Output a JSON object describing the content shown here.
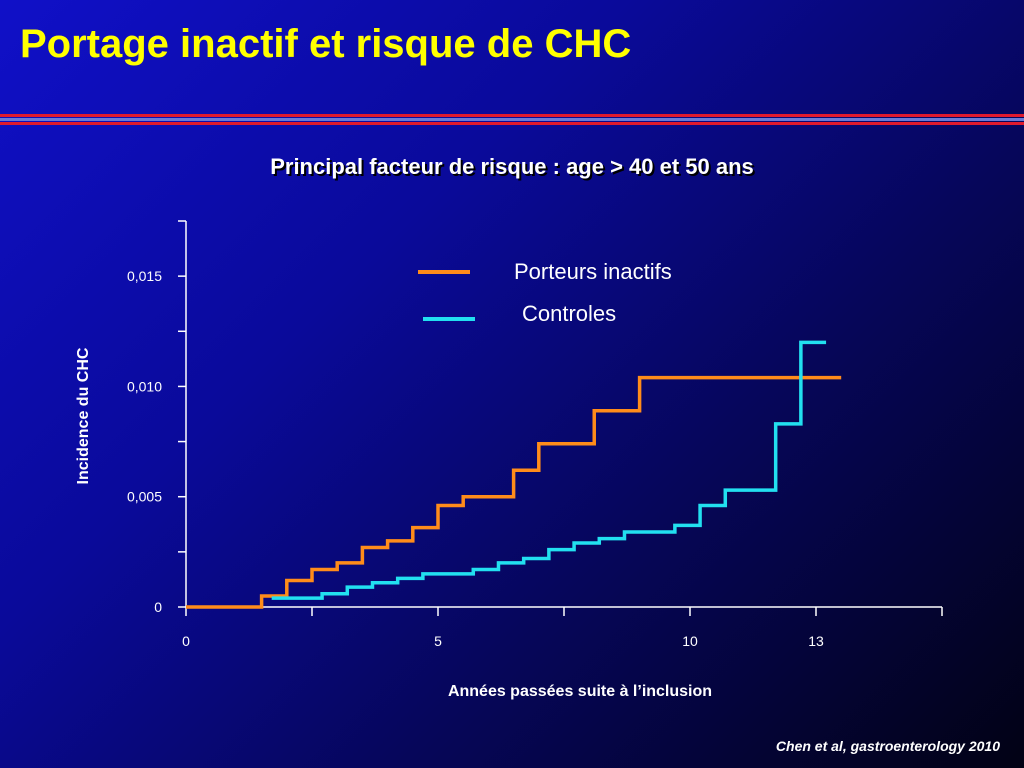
{
  "slide": {
    "title": "Portage inactif et risque de CHC",
    "subtitle": "Principal facteur de risque : age > 40 et 50 ans",
    "citation": "Chen et al, gastroenterology 2010",
    "colors": {
      "title": "#ffff00",
      "rule_red": "#e01a2e",
      "rule_blue": "#6a7ad8"
    }
  },
  "chart_data": {
    "type": "line",
    "step": true,
    "xlabel": "Années passées suite à l’inclusion",
    "ylabel": "Incidence du CHC",
    "xlim": [
      0,
      15
    ],
    "ylim": [
      0,
      0.0175
    ],
    "x_ticks": [
      {
        "value": 0,
        "label": "0"
      },
      {
        "value": 2.5,
        "label": ""
      },
      {
        "value": 5,
        "label": "5"
      },
      {
        "value": 7.5,
        "label": ""
      },
      {
        "value": 10,
        "label": "10"
      },
      {
        "value": 12.5,
        "label": "13"
      },
      {
        "value": 15,
        "label": ""
      }
    ],
    "y_ticks": [
      {
        "value": 0,
        "label": "0"
      },
      {
        "value": 0.0025,
        "label": ""
      },
      {
        "value": 0.005,
        "label": "0,005"
      },
      {
        "value": 0.0075,
        "label": ""
      },
      {
        "value": 0.01,
        "label": "0,010"
      },
      {
        "value": 0.0125,
        "label": ""
      },
      {
        "value": 0.015,
        "label": "0,015"
      },
      {
        "value": 0.0175,
        "label": ""
      }
    ],
    "legend_position": "top-center",
    "series": [
      {
        "name": "Porteurs inactifs",
        "color": "#ff8c1a",
        "x": [
          0,
          1.5,
          2.0,
          2.5,
          3.0,
          3.5,
          4.0,
          4.5,
          5.0,
          5.5,
          6.5,
          7.0,
          8.1,
          9.0,
          13.0
        ],
        "y": [
          0,
          0.0005,
          0.0012,
          0.0017,
          0.002,
          0.0027,
          0.003,
          0.0036,
          0.0046,
          0.005,
          0.0062,
          0.0074,
          0.0089,
          0.0104,
          0.0104
        ]
      },
      {
        "name": "Controles",
        "color": "#22e0f0",
        "x": [
          1.7,
          2.7,
          3.2,
          3.7,
          4.2,
          4.7,
          5.7,
          6.2,
          6.7,
          7.2,
          7.7,
          8.2,
          8.7,
          9.7,
          10.2,
          10.7,
          11.7,
          12.2,
          12.7
        ],
        "y": [
          0.0004,
          0.0006,
          0.0009,
          0.0011,
          0.0013,
          0.0015,
          0.0017,
          0.002,
          0.0022,
          0.0026,
          0.0029,
          0.0031,
          0.0034,
          0.0037,
          0.0046,
          0.0053,
          0.0083,
          0.012,
          0.012
        ]
      }
    ]
  }
}
